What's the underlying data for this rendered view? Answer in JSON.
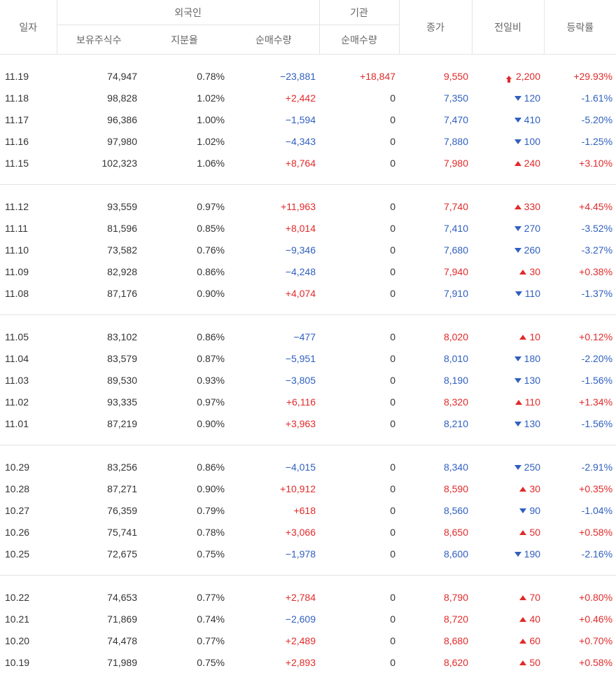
{
  "headers": {
    "date": "일자",
    "foreign": "외국인",
    "institution": "기관",
    "holdings": "보유주식수",
    "ratio": "지분율",
    "foreign_net": "순매수량",
    "inst_net": "순매수량",
    "close": "종가",
    "change": "전일비",
    "rate": "등락률"
  },
  "colors": {
    "up": "#e12a2a",
    "down": "#2f5fbf"
  },
  "groups": [
    [
      {
        "date": "11.19",
        "holdings": "74,947",
        "ratio": "0.78%",
        "foreign_net": "−23,881",
        "inst_net": "+18,847",
        "close": "9,550",
        "change": "2,200",
        "rate": "+29.93%",
        "dir": "limit"
      },
      {
        "date": "11.18",
        "holdings": "98,828",
        "ratio": "1.02%",
        "foreign_net": "+2,442",
        "inst_net": "0",
        "close": "7,350",
        "change": "120",
        "rate": "-1.61%",
        "dir": "down"
      },
      {
        "date": "11.17",
        "holdings": "96,386",
        "ratio": "1.00%",
        "foreign_net": "−1,594",
        "inst_net": "0",
        "close": "7,470",
        "change": "410",
        "rate": "-5.20%",
        "dir": "down"
      },
      {
        "date": "11.16",
        "holdings": "97,980",
        "ratio": "1.02%",
        "foreign_net": "−4,343",
        "inst_net": "0",
        "close": "7,880",
        "change": "100",
        "rate": "-1.25%",
        "dir": "down"
      },
      {
        "date": "11.15",
        "holdings": "102,323",
        "ratio": "1.06%",
        "foreign_net": "+8,764",
        "inst_net": "0",
        "close": "7,980",
        "change": "240",
        "rate": "+3.10%",
        "dir": "up"
      }
    ],
    [
      {
        "date": "11.12",
        "holdings": "93,559",
        "ratio": "0.97%",
        "foreign_net": "+11,963",
        "inst_net": "0",
        "close": "7,740",
        "change": "330",
        "rate": "+4.45%",
        "dir": "up"
      },
      {
        "date": "11.11",
        "holdings": "81,596",
        "ratio": "0.85%",
        "foreign_net": "+8,014",
        "inst_net": "0",
        "close": "7,410",
        "change": "270",
        "rate": "-3.52%",
        "dir": "down"
      },
      {
        "date": "11.10",
        "holdings": "73,582",
        "ratio": "0.76%",
        "foreign_net": "−9,346",
        "inst_net": "0",
        "close": "7,680",
        "change": "260",
        "rate": "-3.27%",
        "dir": "down"
      },
      {
        "date": "11.09",
        "holdings": "82,928",
        "ratio": "0.86%",
        "foreign_net": "−4,248",
        "inst_net": "0",
        "close": "7,940",
        "change": "30",
        "rate": "+0.38%",
        "dir": "up"
      },
      {
        "date": "11.08",
        "holdings": "87,176",
        "ratio": "0.90%",
        "foreign_net": "+4,074",
        "inst_net": "0",
        "close": "7,910",
        "change": "110",
        "rate": "-1.37%",
        "dir": "down"
      }
    ],
    [
      {
        "date": "11.05",
        "holdings": "83,102",
        "ratio": "0.86%",
        "foreign_net": "−477",
        "inst_net": "0",
        "close": "8,020",
        "change": "10",
        "rate": "+0.12%",
        "dir": "up"
      },
      {
        "date": "11.04",
        "holdings": "83,579",
        "ratio": "0.87%",
        "foreign_net": "−5,951",
        "inst_net": "0",
        "close": "8,010",
        "change": "180",
        "rate": "-2.20%",
        "dir": "down"
      },
      {
        "date": "11.03",
        "holdings": "89,530",
        "ratio": "0.93%",
        "foreign_net": "−3,805",
        "inst_net": "0",
        "close": "8,190",
        "change": "130",
        "rate": "-1.56%",
        "dir": "down"
      },
      {
        "date": "11.02",
        "holdings": "93,335",
        "ratio": "0.97%",
        "foreign_net": "+6,116",
        "inst_net": "0",
        "close": "8,320",
        "change": "110",
        "rate": "+1.34%",
        "dir": "up"
      },
      {
        "date": "11.01",
        "holdings": "87,219",
        "ratio": "0.90%",
        "foreign_net": "+3,963",
        "inst_net": "0",
        "close": "8,210",
        "change": "130",
        "rate": "-1.56%",
        "dir": "down"
      }
    ],
    [
      {
        "date": "10.29",
        "holdings": "83,256",
        "ratio": "0.86%",
        "foreign_net": "−4,015",
        "inst_net": "0",
        "close": "8,340",
        "change": "250",
        "rate": "-2.91%",
        "dir": "down"
      },
      {
        "date": "10.28",
        "holdings": "87,271",
        "ratio": "0.90%",
        "foreign_net": "+10,912",
        "inst_net": "0",
        "close": "8,590",
        "change": "30",
        "rate": "+0.35%",
        "dir": "up"
      },
      {
        "date": "10.27",
        "holdings": "76,359",
        "ratio": "0.79%",
        "foreign_net": "+618",
        "inst_net": "0",
        "close": "8,560",
        "change": "90",
        "rate": "-1.04%",
        "dir": "down"
      },
      {
        "date": "10.26",
        "holdings": "75,741",
        "ratio": "0.78%",
        "foreign_net": "+3,066",
        "inst_net": "0",
        "close": "8,650",
        "change": "50",
        "rate": "+0.58%",
        "dir": "up"
      },
      {
        "date": "10.25",
        "holdings": "72,675",
        "ratio": "0.75%",
        "foreign_net": "−1,978",
        "inst_net": "0",
        "close": "8,600",
        "change": "190",
        "rate": "-2.16%",
        "dir": "down"
      }
    ],
    [
      {
        "date": "10.22",
        "holdings": "74,653",
        "ratio": "0.77%",
        "foreign_net": "+2,784",
        "inst_net": "0",
        "close": "8,790",
        "change": "70",
        "rate": "+0.80%",
        "dir": "up"
      },
      {
        "date": "10.21",
        "holdings": "71,869",
        "ratio": "0.74%",
        "foreign_net": "−2,609",
        "inst_net": "0",
        "close": "8,720",
        "change": "40",
        "rate": "+0.46%",
        "dir": "up"
      },
      {
        "date": "10.20",
        "holdings": "74,478",
        "ratio": "0.77%",
        "foreign_net": "+2,489",
        "inst_net": "0",
        "close": "8,680",
        "change": "60",
        "rate": "+0.70%",
        "dir": "up"
      },
      {
        "date": "10.19",
        "holdings": "71,989",
        "ratio": "0.75%",
        "foreign_net": "+2,893",
        "inst_net": "0",
        "close": "8,620",
        "change": "50",
        "rate": "+0.58%",
        "dir": "up"
      }
    ]
  ]
}
